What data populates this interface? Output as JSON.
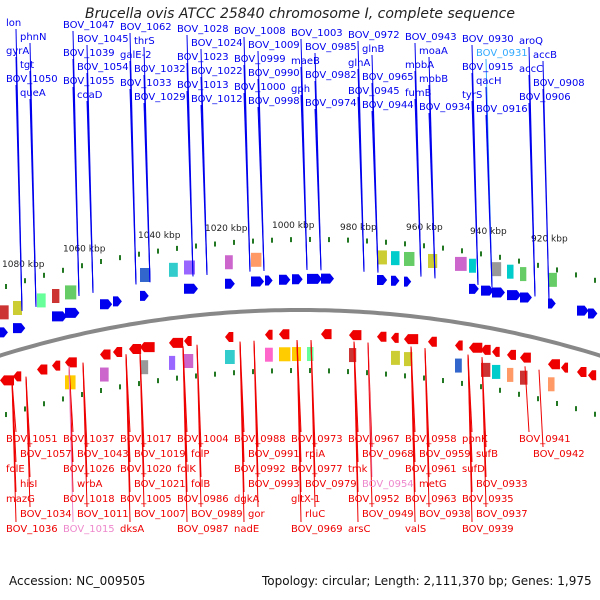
{
  "title": "Brucella ovis ATCC 25840 chromosome I, complete sequence",
  "accession": "Accession: NC_009505",
  "summary": "Topology: circular; Length: 2,111,370 bp; Genes: 1,975",
  "colors": {
    "forward": "#0000ee",
    "reverse": "#ee0000",
    "pseudo_fwd": "#33aaff",
    "pseudo_rev": "#ee88cc",
    "backbone": "#888888",
    "tick": "#227722"
  },
  "kbp_ticks": [
    "1080 kbp",
    "1060 kbp",
    "1040 kbp",
    "1020 kbp",
    "1000 kbp",
    "980 kbp",
    "960 kbp",
    "940 kbp",
    "920 kbp"
  ],
  "forward_genes": [
    "lon",
    "phnN",
    "gyrA",
    "tgt",
    "BOV_1050",
    "queA",
    "BOV_1047",
    "BOV_1045",
    "BOV_1039",
    "BOV_1054",
    "BOV_1055",
    "coaD",
    "BOV_1062",
    "thrS",
    "galE-2",
    "BOV_1032",
    "BOV_1033",
    "BOV_1029",
    "BOV_1028",
    "BOV_1024",
    "BOV_1023",
    "BOV_1022",
    "BOV_1013",
    "BOV_1012",
    "BOV_1008",
    "BOV_1009",
    "BOV_0999",
    "BOV_0990",
    "BOV_1000",
    "BOV_0998",
    "BOV_1003",
    "BOV_0985",
    "maeB",
    "BOV_0982",
    "gph",
    "BOV_0974",
    "BOV_0972",
    "glnB",
    "glnA",
    "BOV_0965",
    "BOV_0945",
    "BOV_0944",
    "BOV_0943",
    "moaA",
    "mobA",
    "mobB",
    "fumB",
    "BOV_0934",
    "BOV_0930",
    "BOV_0931",
    "BOV_0915",
    "qacH",
    "tyrS",
    "BOV_0916",
    "aroQ",
    "accB",
    "accC",
    "BOV_0908",
    "BOV_0906"
  ],
  "reverse_genes": [
    "BOV_1051",
    "BOV_1057",
    "folE",
    "hisI",
    "mazG",
    "BOV_1034",
    "BOV_1036",
    "BOV_1037",
    "BOV_1043",
    "BOV_1026",
    "wrbA",
    "BOV_1018",
    "BOV_1011",
    "BOV_1015",
    "BOV_1017",
    "BOV_1019",
    "BOV_1020",
    "BOV_1021",
    "BOV_1005",
    "BOV_1007",
    "dksA",
    "BOV_1004",
    "folP",
    "folK",
    "folB",
    "BOV_0986",
    "BOV_0989",
    "BOV_0987",
    "BOV_0988",
    "BOV_0991",
    "BOV_0992",
    "BOV_0993",
    "dgkA",
    "gor",
    "nadE",
    "BOV_0973",
    "rpiA",
    "BOV_0977",
    "BOV_0979",
    "gltX-1",
    "rluC",
    "BOV_0969",
    "BOV_0967",
    "BOV_0968",
    "tmk",
    "BOV_0954",
    "BOV_0952",
    "BOV_0949",
    "arsC",
    "BOV_0958",
    "BOV_0959",
    "BOV_0961",
    "metG",
    "BOV_0963",
    "BOV_0938",
    "valS",
    "ppnK",
    "sufB",
    "sufD",
    "BOV_0933",
    "BOV_0935",
    "BOV_0937",
    "BOV_0939",
    "BOV_0941",
    "BOV_0942"
  ]
}
